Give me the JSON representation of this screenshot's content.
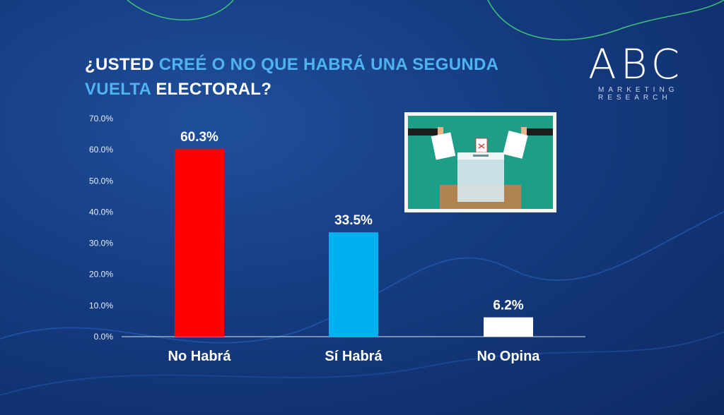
{
  "title": {
    "parts": [
      {
        "text": "¿USTED ",
        "color": "white"
      },
      {
        "text": "CREÉ O NO QUE HABRÁ UNA SEGUNDA",
        "color": "cyan"
      },
      {
        "text": "VUELTA ",
        "color": "cyan"
      },
      {
        "text": "ELECTORAL?",
        "color": "white"
      }
    ]
  },
  "logo": {
    "mark": "ABC",
    "tagline_1": "MARKETING",
    "tagline_2": "RESEARCH"
  },
  "illustration": {
    "icon": "ballot-box-voting-icon"
  },
  "chart_data": {
    "type": "bar",
    "title": "¿USTED CREÉ O NO QUE HABRÁ UNA SEGUNDA VUELTA ELECTORAL?",
    "categories": [
      "No Habrá",
      "Sí Habrá",
      "No Opina"
    ],
    "values": [
      60.3,
      33.5,
      6.2
    ],
    "data_labels": [
      "60.3%",
      "33.5%",
      "6.2%"
    ],
    "colors": [
      "#ff0000",
      "#00b0f0",
      "#ffffff"
    ],
    "ylim": [
      0,
      70
    ],
    "yticks": [
      "0.0%",
      "10.0%",
      "20.0%",
      "30.0%",
      "40.0%",
      "50.0%",
      "60.0%",
      "70.0%"
    ],
    "grid": false,
    "legend": "none"
  }
}
